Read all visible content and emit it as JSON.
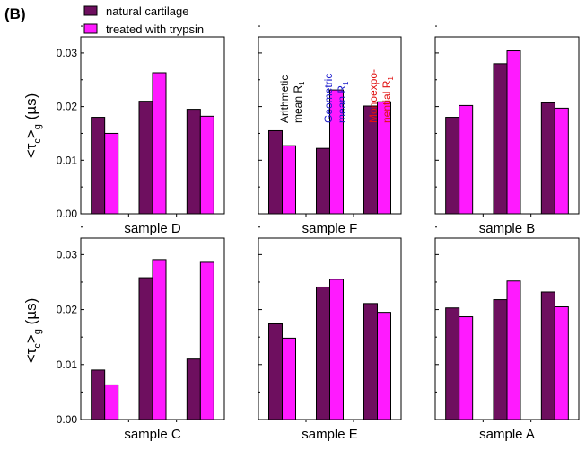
{
  "panel_label": "(B)",
  "y_axis_label": {
    "prefix": "<τ",
    "sub": "c",
    "mid": ">",
    "sub2": "g",
    "unit": "  (µs)"
  },
  "legend": [
    {
      "label": "natural cartilage",
      "color": "#6e0f5f"
    },
    {
      "label": "treated with trypsin",
      "color": "#ff1aff"
    }
  ],
  "annotations": [
    {
      "lines": [
        "Arithmetic",
        "mean R"
      ],
      "sub": "1",
      "color": "#000000"
    },
    {
      "lines": [
        "Geometric",
        "mean R"
      ],
      "sub": "1",
      "color": "#1a1acc"
    },
    {
      "lines": [
        "Monoexpo-",
        "nential R"
      ],
      "sub": "1",
      "color": "#e01010"
    }
  ],
  "chart_data": [
    {
      "type": "bar",
      "title": "sample D",
      "ylim": [
        0,
        0.033
      ],
      "yticks": [
        "0.00",
        "0.01",
        "0.02",
        "0.03"
      ],
      "series": [
        {
          "name": "natural cartilage",
          "values": [
            0.018,
            0.021,
            0.0195
          ]
        },
        {
          "name": "treated with trypsin",
          "values": [
            0.015,
            0.0263,
            0.0182
          ]
        }
      ]
    },
    {
      "type": "bar",
      "title": "sample F",
      "ylim": [
        0,
        0.033
      ],
      "series": [
        {
          "name": "natural cartilage",
          "values": [
            0.0155,
            0.0122,
            0.0201
          ]
        },
        {
          "name": "treated with trypsin",
          "values": [
            0.0127,
            0.0231,
            0.0209
          ]
        }
      ]
    },
    {
      "type": "bar",
      "title": "sample B",
      "ylim": [
        0,
        0.033
      ],
      "series": [
        {
          "name": "natural cartilage",
          "values": [
            0.018,
            0.028,
            0.0207
          ]
        },
        {
          "name": "treated with trypsin",
          "values": [
            0.0202,
            0.0304,
            0.0197
          ]
        }
      ]
    },
    {
      "type": "bar",
      "title": "sample C",
      "ylim": [
        0,
        0.033
      ],
      "yticks": [
        "0.00",
        "0.01",
        "0.02",
        "0.03"
      ],
      "series": [
        {
          "name": "natural cartilage",
          "values": [
            0.009,
            0.0258,
            0.011
          ]
        },
        {
          "name": "treated with trypsin",
          "values": [
            0.0063,
            0.0291,
            0.0286
          ]
        }
      ]
    },
    {
      "type": "bar",
      "title": "sample E",
      "ylim": [
        0,
        0.033
      ],
      "series": [
        {
          "name": "natural cartilage",
          "values": [
            0.0174,
            0.0241,
            0.0211
          ]
        },
        {
          "name": "treated with trypsin",
          "values": [
            0.0148,
            0.0255,
            0.0195
          ]
        }
      ]
    },
    {
      "type": "bar",
      "title": "sample A",
      "ylim": [
        0,
        0.033
      ],
      "series": [
        {
          "name": "natural cartilage",
          "values": [
            0.0203,
            0.0218,
            0.0232
          ]
        },
        {
          "name": "treated with trypsin",
          "values": [
            0.0187,
            0.0252,
            0.0205
          ]
        }
      ]
    }
  ]
}
